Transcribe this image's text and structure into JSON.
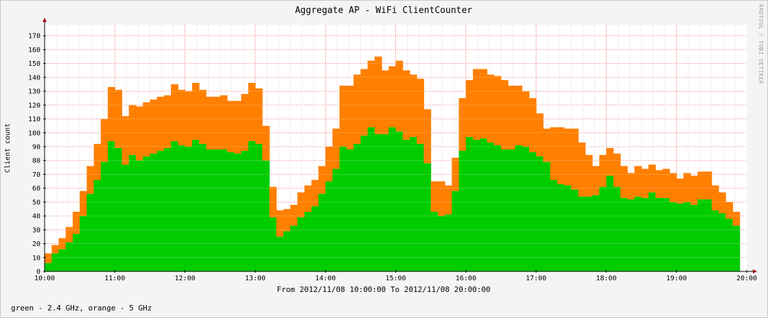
{
  "chart_data": {
    "type": "area",
    "stacked": true,
    "title": "Aggregate AP - WiFi ClientCounter",
    "ylabel": "Client count",
    "xlabel": "From 2012/11/08 10:00:00 To 2012/11/08 20:00:00",
    "x_range": [
      "10:00",
      "20:00"
    ],
    "ylim": [
      0,
      178
    ],
    "y_ticks": [
      0,
      10,
      20,
      30,
      40,
      50,
      60,
      70,
      80,
      90,
      100,
      110,
      120,
      130,
      140,
      150,
      160,
      170
    ],
    "x_tick_labels": [
      "10:00",
      "11:00",
      "12:00",
      "13:00",
      "14:00",
      "15:00",
      "16:00",
      "17:00",
      "18:00",
      "19:00",
      "20:00"
    ],
    "grid": true,
    "interval_minutes": 6,
    "series": [
      {
        "key": "g24",
        "color": "#00cc00",
        "values": [
          6,
          13,
          16,
          21,
          27,
          40,
          56,
          66,
          79,
          94,
          89,
          77,
          84,
          80,
          83,
          85,
          87,
          89,
          94,
          91,
          90,
          95,
          92,
          88,
          88,
          88,
          86,
          85,
          87,
          94,
          92,
          80,
          39,
          25,
          29,
          33,
          39,
          43,
          47,
          56,
          65,
          74,
          90,
          88,
          92,
          98,
          104,
          99,
          99,
          104,
          101,
          95,
          97,
          92,
          78,
          43,
          40,
          41,
          58,
          87,
          97,
          95,
          96,
          93,
          91,
          88,
          88,
          91,
          90,
          86,
          83,
          79,
          66,
          63,
          62,
          59,
          54,
          54,
          55,
          61,
          69,
          61,
          53,
          52,
          54,
          53,
          57,
          53,
          53,
          50,
          49,
          50,
          48,
          52,
          52,
          44,
          42,
          38,
          33
        ]
      },
      {
        "key": "g5",
        "color": "#ff7f00",
        "values": [
          7,
          6,
          8,
          11,
          16,
          18,
          20,
          26,
          31,
          39,
          42,
          35,
          36,
          39,
          39,
          39,
          39,
          38,
          41,
          40,
          40,
          41,
          39,
          38,
          38,
          39,
          37,
          38,
          41,
          42,
          40,
          25,
          22,
          19,
          16,
          15,
          18,
          19,
          19,
          20,
          25,
          29,
          44,
          46,
          50,
          48,
          48,
          56,
          46,
          44,
          51,
          50,
          45,
          47,
          39,
          22,
          25,
          21,
          24,
          38,
          41,
          51,
          50,
          49,
          50,
          50,
          46,
          43,
          40,
          39,
          31,
          24,
          38,
          41,
          41,
          44,
          39,
          30,
          21,
          23,
          20,
          24,
          23,
          19,
          22,
          21,
          20,
          20,
          21,
          21,
          18,
          21,
          21,
          20,
          20,
          18,
          15,
          12,
          10
        ]
      }
    ]
  },
  "legend_text": "green - 2.4 GHz, orange - 5 GHz",
  "watermark": "RRDTOOL / TOBI OETIKER"
}
